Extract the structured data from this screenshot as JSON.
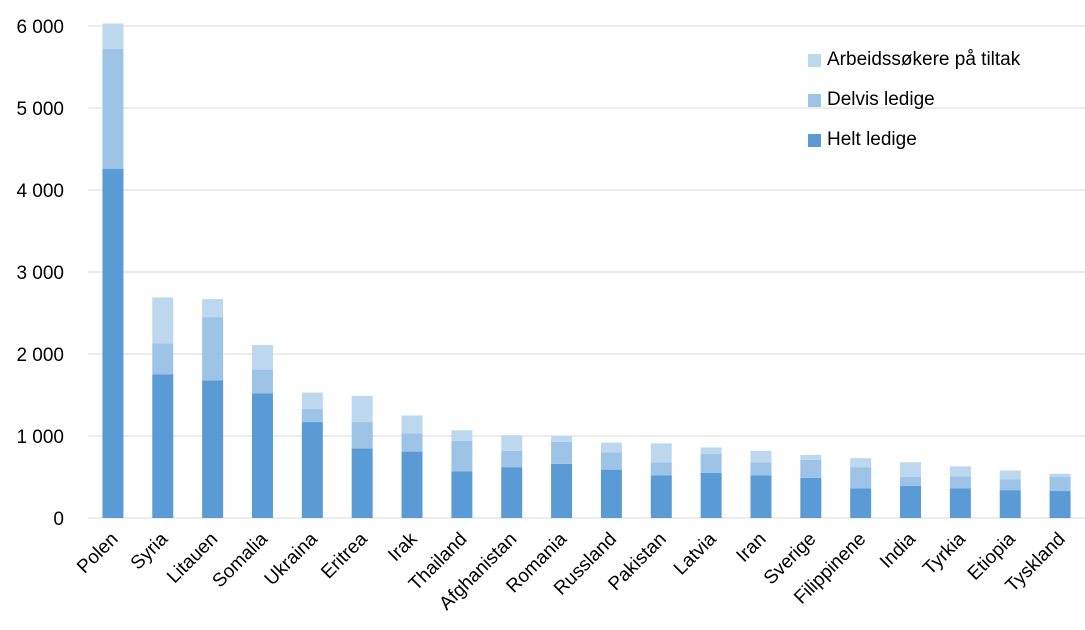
{
  "chart_data": {
    "type": "bar",
    "stacked": true,
    "categories": [
      "Polen",
      "Syria",
      "Litauen",
      "Somalia",
      "Ukraina",
      "Eritrea",
      "Irak",
      "Thailand",
      "Afghanistan",
      "Romania",
      "Russland",
      "Pakistan",
      "Latvia",
      "Iran",
      "Sverige",
      "Filippinene",
      "India",
      "Tyrkia",
      "Etiopia",
      "Tyskland"
    ],
    "series": [
      {
        "name": "Helt ledige",
        "color": "#5b9bd5",
        "values": [
          4260,
          1750,
          1680,
          1520,
          1170,
          850,
          810,
          570,
          620,
          660,
          590,
          520,
          550,
          520,
          490,
          360,
          390,
          360,
          340,
          330
        ]
      },
      {
        "name": "Delvis ledige",
        "color": "#9dc3e6",
        "values": [
          1460,
          380,
          770,
          290,
          160,
          320,
          220,
          370,
          200,
          270,
          210,
          160,
          230,
          160,
          220,
          260,
          110,
          150,
          130,
          170
        ]
      },
      {
        "name": "Arbeidssøkere på tiltak",
        "color": "#bdd7ee",
        "values": [
          310,
          560,
          220,
          300,
          200,
          320,
          220,
          130,
          190,
          70,
          120,
          230,
          80,
          140,
          60,
          110,
          180,
          120,
          110,
          40
        ]
      }
    ],
    "yticks": [
      "0",
      "1 000",
      "2 000",
      "3 000",
      "4 000",
      "5 000",
      "6 000"
    ],
    "ylim": [
      0,
      6000
    ],
    "grid": true,
    "legend_position": "top-right",
    "title": "",
    "xlabel": "",
    "ylabel": ""
  }
}
